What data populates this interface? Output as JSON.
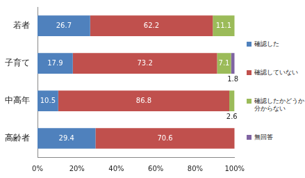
{
  "chart_data": {
    "type": "bar",
    "orientation": "horizontal",
    "stacked": true,
    "data_labels": true,
    "grid": false,
    "legend": "right",
    "categories": [
      "若者",
      "子育て",
      "中高年",
      "高齢者"
    ],
    "series": [
      {
        "name": "確認した",
        "color": "#4f81bd",
        "values": [
          26.7,
          17.9,
          10.5,
          29.4
        ]
      },
      {
        "name": "確認していない",
        "color": "#c0504d",
        "values": [
          62.2,
          73.2,
          86.8,
          70.6
        ]
      },
      {
        "name": "確認したかどうか分からない",
        "color": "#9bbb59",
        "values": [
          11.1,
          7.1,
          2.6,
          null
        ]
      },
      {
        "name": "無回答",
        "color": "#8064a2",
        "values": [
          null,
          1.8,
          null,
          null
        ]
      }
    ],
    "xlim": [
      0,
      100
    ],
    "xticks": [
      {
        "value": 0,
        "label": "0%"
      },
      {
        "value": 20,
        "label": "20%"
      },
      {
        "value": 40,
        "label": "40%"
      },
      {
        "value": 60,
        "label": "60%"
      },
      {
        "value": 80,
        "label": "80%"
      },
      {
        "value": 100,
        "label": "100%"
      }
    ]
  }
}
